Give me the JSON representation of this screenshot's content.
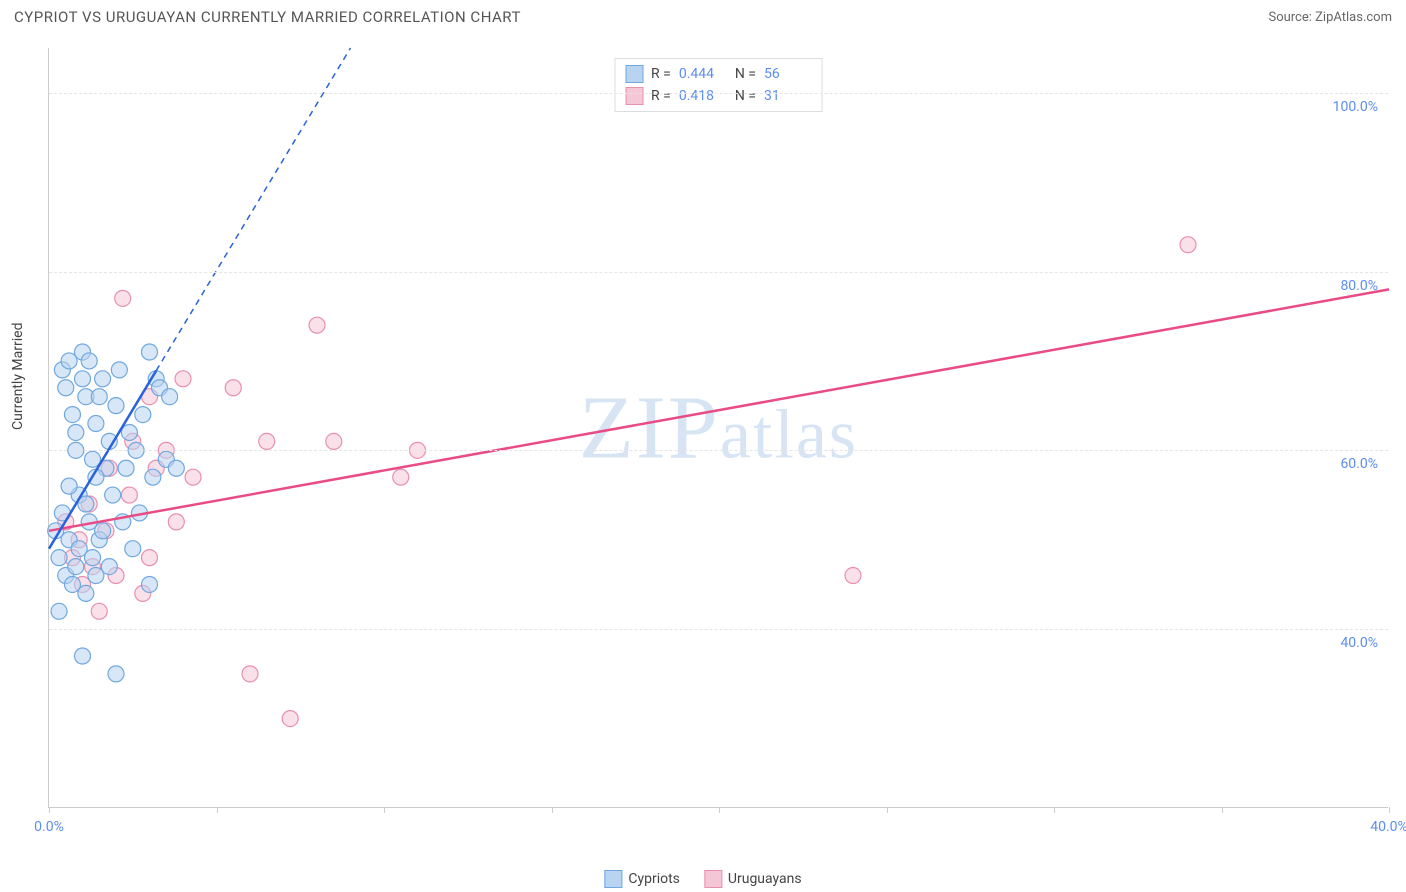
{
  "title": "CYPRIOT VS URUGUAYAN CURRENTLY MARRIED CORRELATION CHART",
  "source": "Source: ZipAtlas.com",
  "ylabel": "Currently Married",
  "watermark": "ZIPatlas",
  "chart": {
    "type": "scatter",
    "xlim": [
      0,
      40
    ],
    "ylim": [
      20,
      105
    ],
    "x_ticks": [
      0,
      5,
      10,
      15,
      20,
      25,
      30,
      35,
      40
    ],
    "x_tick_labels_shown": {
      "0": "0.0%",
      "40": "40.0%"
    },
    "y_grid": [
      40,
      60,
      80,
      100
    ],
    "y_tick_labels": {
      "40": "40.0%",
      "60": "60.0%",
      "80": "80.0%",
      "100": "100.0%"
    },
    "background_color": "#ffffff",
    "grid_color": "#e5e5e5",
    "axis_color": "#cccccc",
    "tick_label_color": "#5b8def"
  },
  "series": {
    "cypriots": {
      "label": "Cypriots",
      "fill_color": "#b8d4f0",
      "stroke_color": "#6fa8e0",
      "line_color": "#2962d9",
      "marker_radius": 8,
      "R": "0.444",
      "N": "56",
      "trend": {
        "x1": 0,
        "y1": 49,
        "x2": 9,
        "y2": 105,
        "dashed_after_x": 3.2
      },
      "points": [
        [
          0.2,
          51
        ],
        [
          0.3,
          48
        ],
        [
          0.4,
          53
        ],
        [
          0.4,
          69
        ],
        [
          0.5,
          46
        ],
        [
          0.5,
          67
        ],
        [
          0.6,
          70
        ],
        [
          0.6,
          50
        ],
        [
          0.7,
          45
        ],
        [
          0.7,
          64
        ],
        [
          0.8,
          62
        ],
        [
          0.8,
          47
        ],
        [
          0.9,
          55
        ],
        [
          0.9,
          49
        ],
        [
          1.0,
          68
        ],
        [
          1.0,
          71
        ],
        [
          1.1,
          44
        ],
        [
          1.1,
          66
        ],
        [
          1.2,
          52
        ],
        [
          1.2,
          70
        ],
        [
          1.3,
          59
        ],
        [
          1.3,
          48
        ],
        [
          1.4,
          63
        ],
        [
          1.4,
          46
        ],
        [
          1.5,
          66
        ],
        [
          1.5,
          50
        ],
        [
          1.6,
          68
        ],
        [
          1.7,
          58
        ],
        [
          1.8,
          61
        ],
        [
          1.8,
          47
        ],
        [
          2.0,
          65
        ],
        [
          2.0,
          35
        ],
        [
          2.1,
          69
        ],
        [
          2.2,
          52
        ],
        [
          2.3,
          58
        ],
        [
          2.4,
          62
        ],
        [
          2.5,
          49
        ],
        [
          2.6,
          60
        ],
        [
          2.8,
          64
        ],
        [
          3.0,
          71
        ],
        [
          3.0,
          45
        ],
        [
          3.1,
          57
        ],
        [
          3.2,
          68
        ],
        [
          3.3,
          67
        ],
        [
          3.5,
          59
        ],
        [
          3.6,
          66
        ],
        [
          3.8,
          58
        ],
        [
          1.0,
          37
        ],
        [
          0.3,
          42
        ],
        [
          0.6,
          56
        ],
        [
          0.8,
          60
        ],
        [
          1.1,
          54
        ],
        [
          1.4,
          57
        ],
        [
          1.6,
          51
        ],
        [
          1.9,
          55
        ],
        [
          2.7,
          53
        ]
      ]
    },
    "uruguayans": {
      "label": "Uruguayans",
      "fill_color": "#f5c6d6",
      "stroke_color": "#e88fb0",
      "line_color": "#e94b86",
      "marker_radius": 8,
      "R": "0.418",
      "N": "31",
      "trend": {
        "x1": 0,
        "y1": 51,
        "x2": 40,
        "y2": 78,
        "dashed_after_x": 40
      },
      "points": [
        [
          0.5,
          52
        ],
        [
          0.7,
          48
        ],
        [
          0.9,
          50
        ],
        [
          1.0,
          45
        ],
        [
          1.2,
          54
        ],
        [
          1.3,
          47
        ],
        [
          1.5,
          42
        ],
        [
          1.7,
          51
        ],
        [
          1.8,
          58
        ],
        [
          2.0,
          46
        ],
        [
          2.2,
          77
        ],
        [
          2.4,
          55
        ],
        [
          2.5,
          61
        ],
        [
          2.8,
          44
        ],
        [
          3.0,
          66
        ],
        [
          3.2,
          58
        ],
        [
          3.5,
          60
        ],
        [
          3.8,
          52
        ],
        [
          4.0,
          68
        ],
        [
          4.3,
          57
        ],
        [
          5.5,
          67
        ],
        [
          6.0,
          35
        ],
        [
          6.5,
          61
        ],
        [
          7.2,
          30
        ],
        [
          8.0,
          74
        ],
        [
          8.5,
          61
        ],
        [
          10.5,
          57
        ],
        [
          11.0,
          60
        ],
        [
          24.0,
          46
        ],
        [
          34.0,
          83
        ],
        [
          3.0,
          48
        ]
      ]
    }
  },
  "legend_top": [
    {
      "series": "cypriots",
      "R_label": "R =",
      "N_label": "N ="
    },
    {
      "series": "uruguayans",
      "R_label": "R =",
      "N_label": "N ="
    }
  ]
}
